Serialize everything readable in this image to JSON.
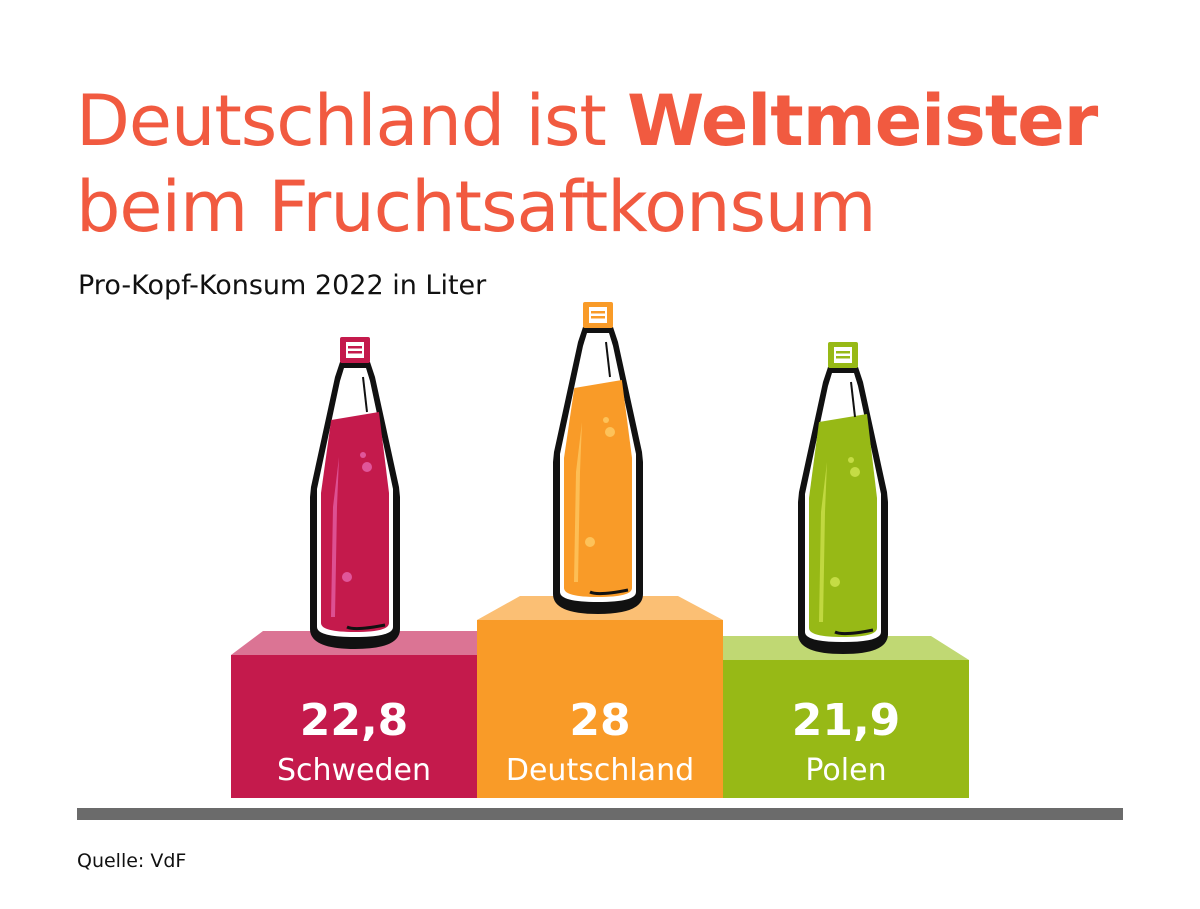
{
  "title": {
    "line1_prefix": "Deutschland ist ",
    "line1_bold": "Weltmeister",
    "line2": "beim Fruchtsaftkonsum"
  },
  "subtitle": "Pro-Kopf-Konsum 2022 in Liter",
  "source": "Quelle: VdF",
  "colors": {
    "title": "#f15a40",
    "ground": "#6b6b6b"
  },
  "chart_data": {
    "type": "bar",
    "title": "Deutschland ist Weltmeister beim Fruchtsaftkonsum",
    "subtitle": "Pro-Kopf-Konsum 2022 in Liter",
    "xlabel": "",
    "ylabel": "Liter",
    "categories": [
      "Schweden",
      "Deutschland",
      "Polen"
    ],
    "values": [
      22.8,
      28,
      21.9
    ],
    "value_labels": [
      "22,8",
      "28",
      "21,9"
    ],
    "bar_colors": [
      "#c41a4c",
      "#f99b28",
      "#97b916"
    ],
    "top_colors": [
      "#db7494",
      "#fbbf74",
      "#c0d873"
    ],
    "highlight_colors": [
      "#e0569a",
      "#fdc25a",
      "#c5dc45"
    ]
  }
}
